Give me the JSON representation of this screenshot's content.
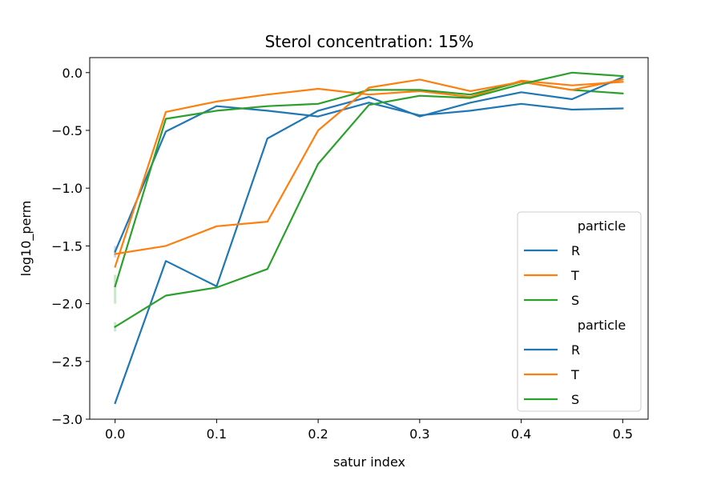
{
  "chart_data": {
    "type": "line",
    "title": "Sterol concentration: 15%",
    "xlabel": "satur index",
    "ylabel": "log10_perm",
    "xlim": [
      -0.025,
      0.525
    ],
    "ylim": [
      -3.0,
      0.13
    ],
    "xticks": [
      0.0,
      0.1,
      0.2,
      0.3,
      0.4,
      0.5
    ],
    "xtick_labels": [
      "0.0",
      "0.1",
      "0.2",
      "0.3",
      "0.4",
      "0.5"
    ],
    "yticks": [
      0.0,
      -0.5,
      -1.0,
      -1.5,
      -2.0,
      -2.5,
      -3.0
    ],
    "ytick_labels": [
      "0.0",
      "−0.5",
      "−1.0",
      "−1.5",
      "−2.0",
      "−2.5",
      "−3.0"
    ],
    "grid": false,
    "legend_placement": "lower-right",
    "legend_groups": [
      {
        "title": "particle",
        "entries": [
          "R",
          "T",
          "S"
        ]
      },
      {
        "title": "particle",
        "entries": [
          "R",
          "T",
          "S"
        ]
      }
    ],
    "colors": {
      "R": "#1f77b4",
      "T": "#ff7f0e",
      "S": "#2ca02c"
    },
    "x": [
      0.0,
      0.05,
      0.1,
      0.15,
      0.2,
      0.25,
      0.3,
      0.35,
      0.4,
      0.45,
      0.5
    ],
    "series": [
      {
        "name": "R",
        "values": [
          -1.55,
          -0.51,
          -0.29,
          -0.33,
          -0.38,
          -0.26,
          -0.37,
          -0.33,
          -0.27,
          -0.32,
          -0.31
        ]
      },
      {
        "name": "T",
        "values": [
          -1.68,
          -0.34,
          -0.25,
          -0.19,
          -0.14,
          -0.19,
          -0.16,
          -0.21,
          -0.07,
          -0.11,
          -0.08
        ]
      },
      {
        "name": "S",
        "values": [
          -1.85,
          -0.4,
          -0.33,
          -0.29,
          -0.27,
          -0.15,
          -0.15,
          -0.19,
          -0.08,
          -0.15,
          -0.18
        ]
      },
      {
        "name": "R",
        "values": [
          -2.86,
          -1.63,
          -1.85,
          -0.57,
          -0.33,
          -0.21,
          -0.38,
          -0.26,
          -0.17,
          -0.23,
          -0.04
        ]
      },
      {
        "name": "T",
        "values": [
          -1.57,
          -1.5,
          -1.33,
          -1.29,
          -0.5,
          -0.13,
          -0.06,
          -0.16,
          -0.08,
          -0.15,
          -0.06
        ]
      },
      {
        "name": "S",
        "values": [
          -2.2,
          -1.93,
          -1.86,
          -1.7,
          -0.79,
          -0.28,
          -0.2,
          -0.22,
          -0.1,
          0.0,
          -0.03
        ]
      }
    ],
    "error_bands": [
      {
        "series": "R",
        "x": 0.0,
        "low": -1.6,
        "high": -1.5
      },
      {
        "series": "S",
        "x": 0.0,
        "low": -2.0,
        "high": -1.75
      },
      {
        "series": "S",
        "x": 0.0,
        "low": -2.24,
        "high": -2.16
      }
    ]
  }
}
